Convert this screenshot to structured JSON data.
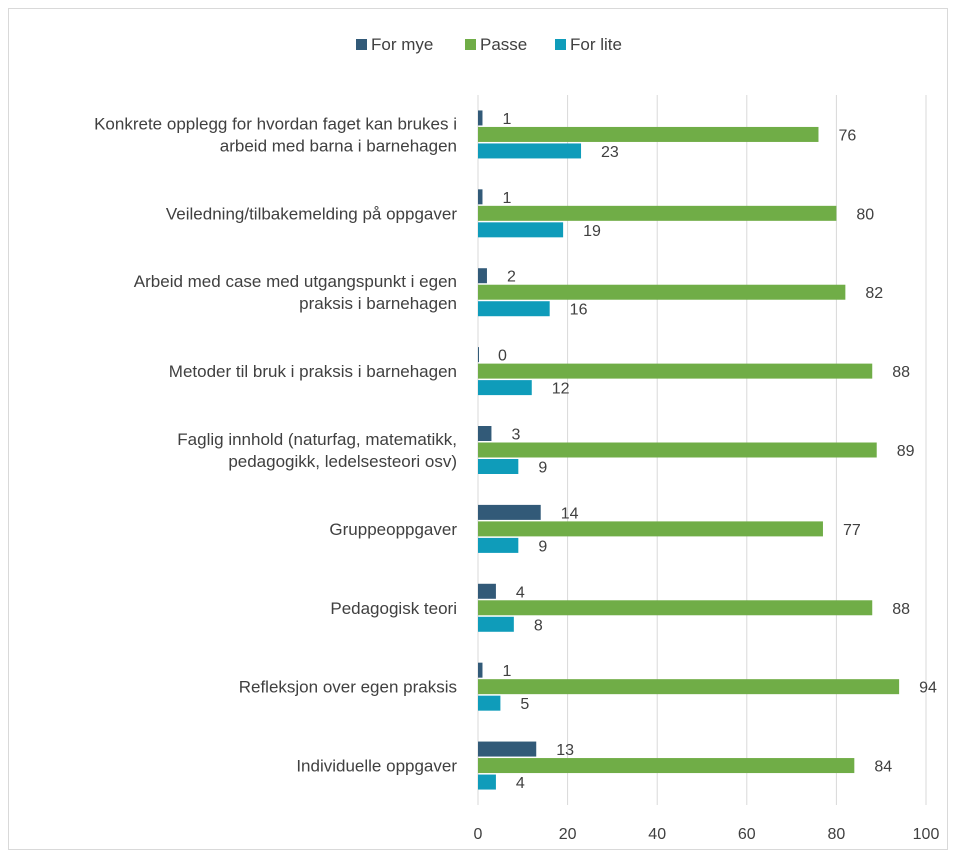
{
  "chart_data": {
    "type": "bar",
    "orientation": "horizontal",
    "categories": [
      [
        "Konkrete opplegg for hvordan faget kan brukes i",
        "arbeid med barna i barnehagen"
      ],
      [
        "Veiledning/tilbakemelding på oppgaver"
      ],
      [
        "Arbeid med case med utgangspunkt i egen",
        "praksis i barnehagen"
      ],
      [
        "Metoder til bruk i praksis i barnehagen"
      ],
      [
        "Faglig innhold (naturfag, matematikk,",
        "pedagogikk, ledelsesteori osv)"
      ],
      [
        "Gruppeoppgaver"
      ],
      [
        "Pedagogisk teori"
      ],
      [
        "Refleksjon over egen praksis"
      ],
      [
        "Individuelle oppgaver"
      ]
    ],
    "series": [
      {
        "name": "For mye",
        "color": "#325a78",
        "values": [
          1,
          1,
          2,
          0,
          3,
          14,
          4,
          1,
          13
        ]
      },
      {
        "name": "Passe",
        "color": "#70ad47",
        "values": [
          76,
          80,
          82,
          88,
          89,
          77,
          88,
          94,
          84
        ]
      },
      {
        "name": "For lite",
        "color": "#0f9cba",
        "values": [
          23,
          19,
          16,
          12,
          9,
          9,
          8,
          5,
          4
        ]
      }
    ],
    "xlim": [
      0,
      100
    ],
    "xticks": [
      "0",
      "20",
      "40",
      "60",
      "80",
      "100"
    ],
    "grid": true,
    "legend": "top-center"
  }
}
